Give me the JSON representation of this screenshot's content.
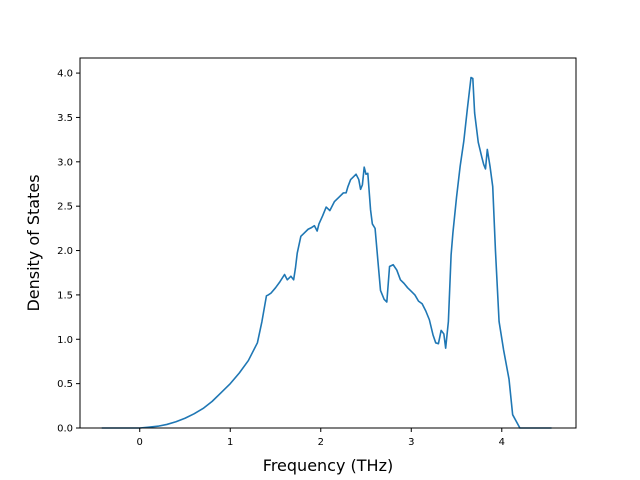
{
  "chart_data": {
    "type": "line",
    "title": "",
    "xlabel": "Frequency (THz)",
    "ylabel": "Density of States",
    "xlim": [
      -0.66,
      4.82
    ],
    "ylim": [
      0,
      4.17
    ],
    "xticks": [
      0,
      1,
      2,
      3,
      4
    ],
    "xtick_labels": [
      "0",
      "1",
      "2",
      "3",
      "4"
    ],
    "yticks": [
      0.0,
      0.5,
      1.0,
      1.5,
      2.0,
      2.5,
      3.0,
      3.5,
      4.0
    ],
    "ytick_labels": [
      "0.0",
      "0.5",
      "1.0",
      "1.5",
      "2.0",
      "2.5",
      "3.0",
      "3.5",
      "4.0"
    ],
    "grid": false,
    "line_color": "#1f77b4",
    "series": [
      {
        "x": [
          -0.42,
          0.0,
          0.1,
          0.2,
          0.3,
          0.4,
          0.5,
          0.6,
          0.7,
          0.8,
          0.9,
          1.0,
          1.1,
          1.2,
          1.3,
          1.35,
          1.4,
          1.42,
          1.45,
          1.5,
          1.55,
          1.6,
          1.63,
          1.67,
          1.7,
          1.72,
          1.74,
          1.78,
          1.82,
          1.86,
          1.9,
          1.93,
          1.96,
          1.98,
          2.02,
          2.06,
          2.1,
          2.15,
          2.2,
          2.25,
          2.28,
          2.3,
          2.33,
          2.36,
          2.39,
          2.42,
          2.44,
          2.46,
          2.48,
          2.5,
          2.52,
          2.55,
          2.57,
          2.6,
          2.63,
          2.66,
          2.7,
          2.73,
          2.76,
          2.8,
          2.84,
          2.88,
          2.92,
          2.96,
          3.0,
          3.04,
          3.08,
          3.12,
          3.16,
          3.2,
          3.24,
          3.27,
          3.3,
          3.33,
          3.36,
          3.38,
          3.41,
          3.44,
          3.46,
          3.5,
          3.54,
          3.58,
          3.62,
          3.66,
          3.68,
          3.7,
          3.74,
          3.78,
          3.8,
          3.82,
          3.84,
          3.87,
          3.9,
          3.93,
          3.97,
          4.02,
          4.08,
          4.12,
          4.2,
          4.55
        ],
        "y": [
          0.0,
          0.0,
          0.01,
          0.02,
          0.04,
          0.07,
          0.11,
          0.16,
          0.22,
          0.3,
          0.4,
          0.5,
          0.62,
          0.76,
          0.96,
          1.2,
          1.49,
          1.5,
          1.52,
          1.58,
          1.65,
          1.73,
          1.67,
          1.71,
          1.67,
          1.8,
          1.97,
          2.16,
          2.2,
          2.24,
          2.26,
          2.28,
          2.22,
          2.3,
          2.39,
          2.49,
          2.45,
          2.55,
          2.6,
          2.65,
          2.65,
          2.72,
          2.8,
          2.83,
          2.86,
          2.8,
          2.69,
          2.74,
          2.94,
          2.86,
          2.87,
          2.46,
          2.3,
          2.25,
          1.9,
          1.55,
          1.45,
          1.42,
          1.82,
          1.84,
          1.78,
          1.67,
          1.63,
          1.58,
          1.54,
          1.5,
          1.43,
          1.4,
          1.32,
          1.22,
          1.05,
          0.96,
          0.95,
          1.1,
          1.06,
          0.9,
          1.2,
          1.95,
          2.2,
          2.6,
          2.95,
          3.23,
          3.6,
          3.95,
          3.94,
          3.55,
          3.22,
          3.05,
          2.97,
          2.92,
          3.14,
          2.95,
          2.72,
          2.0,
          1.2,
          0.88,
          0.55,
          0.15,
          0.0,
          0.0
        ]
      }
    ]
  }
}
